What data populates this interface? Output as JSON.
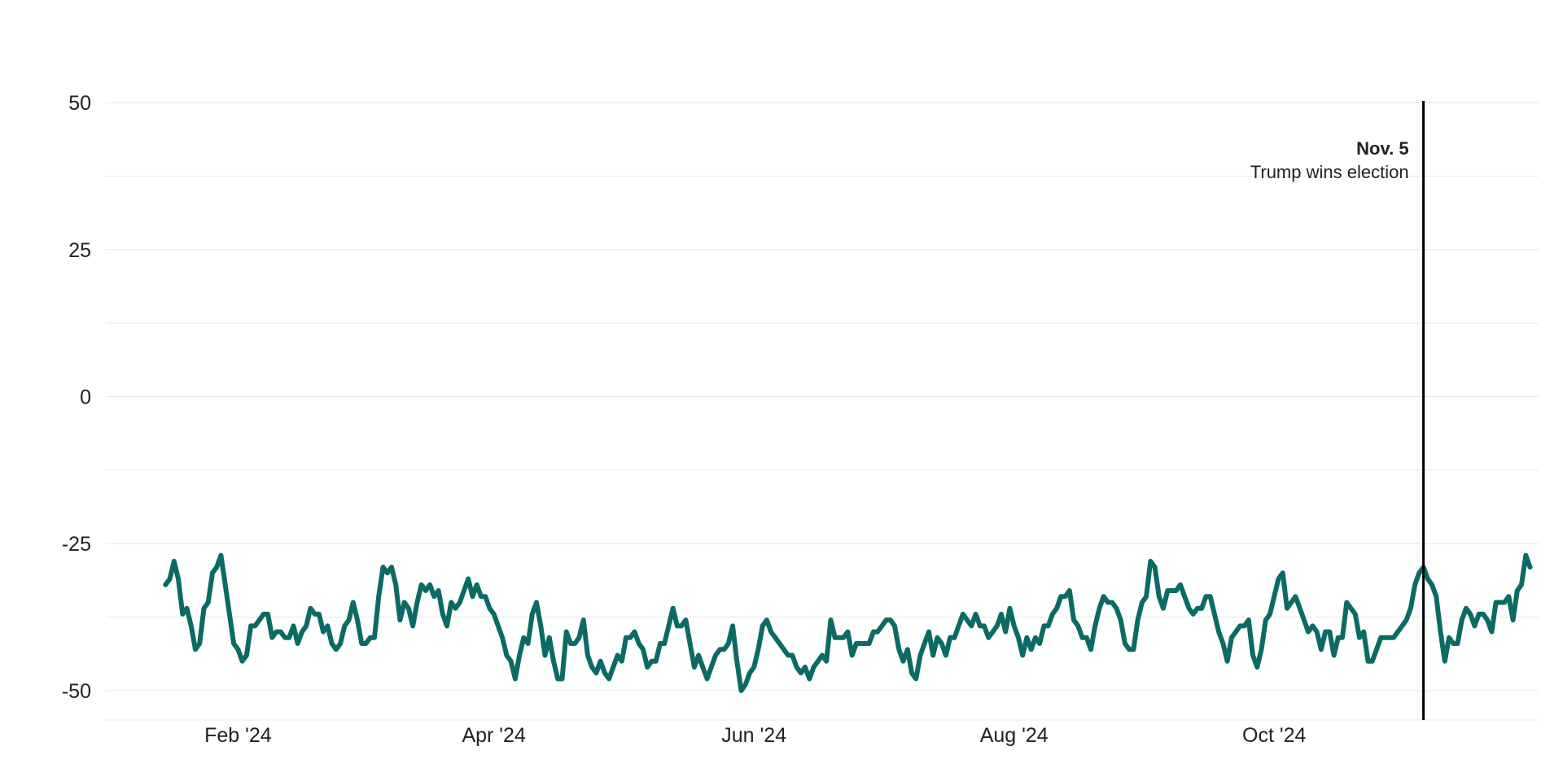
{
  "chart_data": {
    "type": "line",
    "title": "",
    "xlabel": "",
    "ylabel": "",
    "ylim": [
      -55,
      55
    ],
    "xlim": [
      "2024-01-01",
      "2024-12-02"
    ],
    "yticks": [
      50,
      25,
      0,
      -25,
      -50
    ],
    "grid": true,
    "xticks": [
      {
        "date": "2024-02-01",
        "label": "Feb '24"
      },
      {
        "date": "2024-04-01",
        "label": "Apr '24"
      },
      {
        "date": "2024-06-01",
        "label": "Jun '24"
      },
      {
        "date": "2024-08-01",
        "label": "Aug '24"
      },
      {
        "date": "2024-10-01",
        "label": "Oct '24"
      }
    ],
    "colors": {
      "line": "#0b6b64",
      "marker": "#000000"
    },
    "annotation": {
      "date": "2024-11-05",
      "title": "Nov. 5",
      "text": "Trump wins election"
    },
    "series": [
      {
        "start": "2024-01-15",
        "values": [
          -32,
          -31,
          -28,
          -31,
          -37,
          -36,
          -39,
          -43,
          -42,
          -36,
          -35,
          -30,
          -29,
          -27,
          -32,
          -37,
          -42,
          -43,
          -45,
          -44,
          -39,
          -39,
          -38,
          -37,
          -37,
          -41,
          -40,
          -40,
          -41,
          -41,
          -39,
          -42,
          -40,
          -39,
          -36,
          -37,
          -37,
          -40,
          -39,
          -42,
          -43,
          -42,
          -39,
          -38,
          -35,
          -38,
          -42,
          -42,
          -41,
          -41,
          -34,
          -29,
          -30,
          -29,
          -32,
          -38,
          -35,
          -36,
          -39,
          -35,
          -32,
          -33,
          -32,
          -34,
          -33,
          -37,
          -39,
          -35,
          -36,
          -35,
          -33,
          -31,
          -34,
          -32,
          -34,
          -34,
          -36,
          -37,
          -39,
          -41,
          -44,
          -45,
          -48,
          -44,
          -41,
          -42,
          -37,
          -35,
          -39,
          -44,
          -41,
          -45,
          -48,
          -48,
          -40,
          -42,
          -42,
          -41,
          -38,
          -44,
          -46,
          -47,
          -45,
          -47,
          -48,
          -46,
          -44,
          -45,
          -41,
          -41,
          -40,
          -42,
          -43,
          -46,
          -45,
          -45,
          -42,
          -42,
          -39,
          -36,
          -39,
          -39,
          -38,
          -42,
          -46,
          -44,
          -46,
          -48,
          -46,
          -44,
          -43,
          -43,
          -42,
          -39,
          -45,
          -50,
          -49,
          -47,
          -46,
          -43,
          -39,
          -38,
          -40,
          -41,
          -42,
          -43,
          -44,
          -44,
          -46,
          -47,
          -46,
          -48,
          -46,
          -45,
          -44,
          -45,
          -38,
          -41,
          -41,
          -41,
          -40,
          -44,
          -42,
          -42,
          -42,
          -42,
          -40,
          -40,
          -39,
          -38,
          -38,
          -39,
          -43,
          -45,
          -43,
          -47,
          -48,
          -44,
          -42,
          -40,
          -44,
          -41,
          -42,
          -44,
          -41,
          -41,
          -39,
          -37,
          -38,
          -39,
          -37,
          -39,
          -39,
          -41,
          -40,
          -39,
          -37,
          -40,
          -36,
          -39,
          -41,
          -44,
          -41,
          -43,
          -41,
          -42,
          -39,
          -39,
          -37,
          -36,
          -34,
          -34,
          -33,
          -38,
          -39,
          -41,
          -41,
          -43,
          -39,
          -36,
          -34,
          -35,
          -35,
          -36,
          -38,
          -42,
          -43,
          -43,
          -38,
          -35,
          -34,
          -28,
          -29,
          -34,
          -36,
          -33,
          -33,
          -33,
          -32,
          -34,
          -36,
          -37,
          -36,
          -36,
          -34,
          -34,
          -37,
          -40,
          -42,
          -45,
          -41,
          -40,
          -39,
          -39,
          -38,
          -44,
          -46,
          -43,
          -38,
          -37,
          -34,
          -31,
          -30,
          -36,
          -35,
          -34,
          -36,
          -38,
          -40,
          -39,
          -40,
          -43,
          -40,
          -40,
          -44,
          -41,
          -41,
          -35,
          -36,
          -37,
          -41,
          -40,
          -45,
          -45,
          -43,
          -41,
          -41,
          -41,
          -41,
          -40,
          -39,
          -38,
          -36,
          -32,
          -30,
          -29,
          -31,
          -32,
          -34,
          -40,
          -45,
          -41,
          -42,
          -42,
          -38,
          -36,
          -37,
          -39,
          -37,
          -37,
          -38,
          -40,
          -35,
          -35,
          -35,
          -34,
          -38,
          -33,
          -32,
          -27,
          -29
        ]
      }
    ]
  }
}
